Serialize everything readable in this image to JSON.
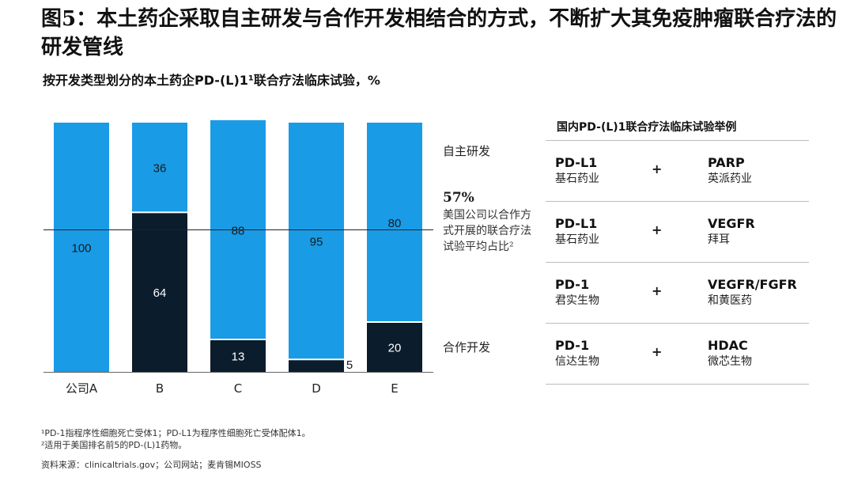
{
  "title": "图5：本土药企采取自主研发与合作开发相结合的方式，不断扩大其免疫肿瘤联合疗法的研发管线",
  "subtitle": "按开发类型划分的本土药企PD-(L)1¹联合疗法临床试验，%",
  "colors": {
    "light": "#1a9be6",
    "dark": "#0b1c2c",
    "refline": "#222222"
  },
  "chart_data": {
    "type": "bar",
    "stacked": true,
    "categories": [
      "公司A",
      "B",
      "C",
      "D",
      "E"
    ],
    "series": [
      {
        "name": "合作开发",
        "values": [
          0,
          64,
          13,
          5,
          20
        ]
      },
      {
        "name": "自主研发",
        "values": [
          100,
          36,
          88,
          95,
          80
        ]
      }
    ],
    "ylim": [
      0,
      100
    ],
    "reference_line": {
      "value": 57
    }
  },
  "labels": {
    "self": "自主研发",
    "collab": "合作开发",
    "note_pct": "57%",
    "note_text": "美国公司以合作方式开展的联合疗法试验平均占比²"
  },
  "panel": {
    "title": "国内PD-(L)1联合疗法临床试验举例",
    "rows": [
      {
        "left_drug": "PD-L1",
        "left_co": "基石药业",
        "plus": "+",
        "right_drug": "PARP",
        "right_co": "英派药业"
      },
      {
        "left_drug": "PD-L1",
        "left_co": "基石药业",
        "plus": "+",
        "right_drug": "VEGFR",
        "right_co": "拜耳"
      },
      {
        "left_drug": "PD-1",
        "left_co": "君实生物",
        "plus": "+",
        "right_drug": "VEGFR/FGFR",
        "right_co": "和黄医药"
      },
      {
        "left_drug": "PD-1",
        "left_co": "信达生物",
        "plus": "+",
        "right_drug": "HDAC",
        "right_co": "微芯生物"
      }
    ]
  },
  "footnotes": [
    "¹PD-1指程序性细胞死亡受体1；PD-L1为程序性细胞死亡受体配体1。",
    "²适用于美国排名前5的PD-(L)1药物。",
    "资料来源：clinicaltrials.gov；公司网站；麦肯锡MIOSS"
  ]
}
